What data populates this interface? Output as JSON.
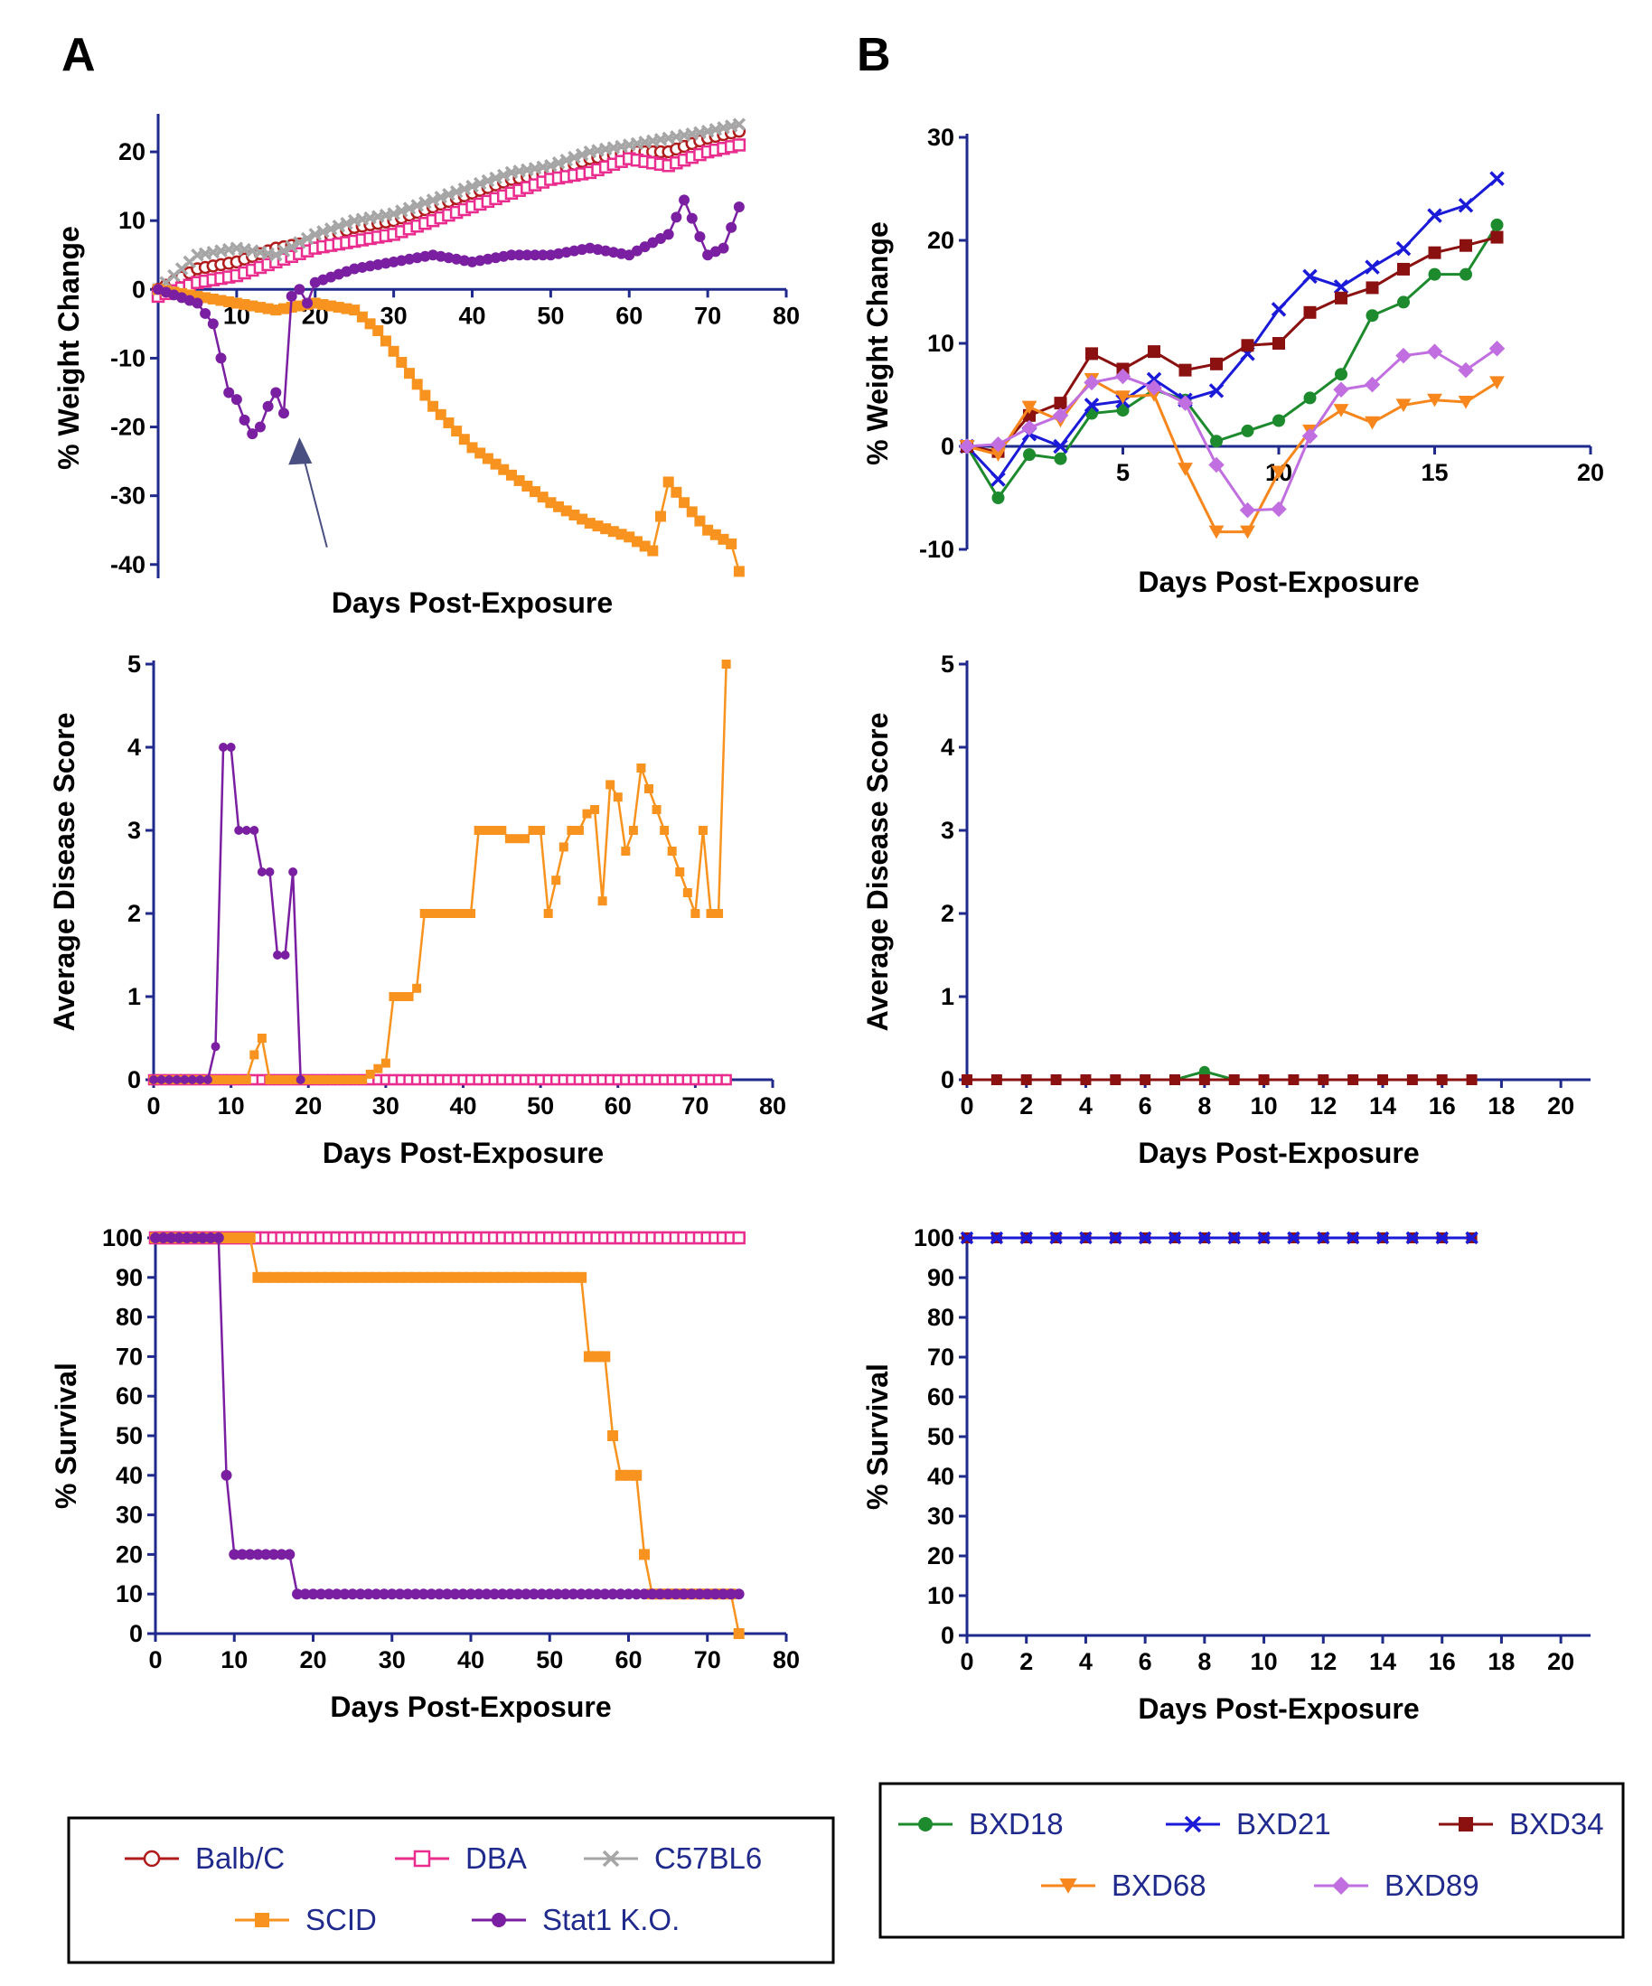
{
  "panels": {
    "A": "A",
    "B": "B"
  },
  "colors": {
    "axis": "#1f2a8c",
    "Balb/C": "#b01c1c",
    "DBA": "#ea2c8e",
    "C57BL6": "#a6a6a6",
    "SCID": "#f7931e",
    "Stat1 K.O.": "#7b1fa2",
    "BXD18": "#1d8a2e",
    "BXD21": "#1a1ad8",
    "BXD34": "#8b1010",
    "BXD68": "#f7861c",
    "BXD89": "#c06ee0",
    "arrow": "#4a4f82"
  },
  "legendA": [
    {
      "label": "Balb/C",
      "marker": "circle-open"
    },
    {
      "label": "DBA",
      "marker": "square-open"
    },
    {
      "label": "C57BL6",
      "marker": "x"
    },
    {
      "label": "SCID",
      "marker": "square"
    },
    {
      "label": "Stat1 K.O.",
      "marker": "circle"
    }
  ],
  "legendB": [
    {
      "label": "BXD18",
      "marker": "circle"
    },
    {
      "label": "BXD21",
      "marker": "x"
    },
    {
      "label": "BXD34",
      "marker": "square"
    },
    {
      "label": "BXD68",
      "marker": "triangle-down"
    },
    {
      "label": "BXD89",
      "marker": "diamond"
    }
  ],
  "chart_data": [
    {
      "id": "A-weight",
      "type": "line",
      "panel": "A",
      "xlabel": "Days Post-Exposure",
      "ylabel": "% Weight Change",
      "xlim": [
        0,
        80
      ],
      "ylim": [
        -42,
        25
      ],
      "xticks": [
        "10",
        "20",
        "30",
        "40",
        "50",
        "60",
        "70",
        "80"
      ],
      "yticks": [
        "-40",
        "-30",
        "-20",
        "-10",
        "0",
        "10",
        "20"
      ],
      "annotation": "arrow pointing at Stat1 K.O. recovery near day 18",
      "series": [
        {
          "name": "Balb/C",
          "x": [
            0,
            5,
            10,
            15,
            20,
            25,
            30,
            35,
            40,
            45,
            50,
            55,
            60,
            65,
            70,
            74
          ],
          "y": [
            0,
            3,
            4,
            6,
            7,
            9,
            10,
            12,
            14,
            16,
            17,
            19,
            20,
            20,
            22,
            23
          ]
        },
        {
          "name": "DBA",
          "x": [
            0,
            5,
            10,
            15,
            20,
            25,
            30,
            35,
            40,
            45,
            50,
            55,
            60,
            65,
            70,
            74
          ],
          "y": [
            -1,
            1,
            2,
            4,
            6,
            7,
            8,
            10,
            12,
            14,
            16,
            17,
            19,
            18,
            20,
            21
          ]
        },
        {
          "name": "C57BL6",
          "x": [
            0,
            5,
            10,
            15,
            20,
            25,
            30,
            35,
            40,
            45,
            50,
            55,
            60,
            65,
            70,
            74
          ],
          "y": [
            0,
            5,
            6,
            5,
            8,
            10,
            11,
            13,
            15,
            17,
            18,
            20,
            21,
            22,
            23,
            24
          ]
        },
        {
          "name": "SCID",
          "x": [
            0,
            5,
            10,
            15,
            20,
            25,
            28,
            30,
            35,
            40,
            45,
            50,
            55,
            60,
            63,
            65,
            67,
            70,
            73,
            74
          ],
          "y": [
            0,
            -1,
            -2,
            -3,
            -2,
            -3,
            -6,
            -9,
            -17,
            -23,
            -27,
            -31,
            -34,
            -36,
            -38,
            -28,
            -31,
            -35,
            -37,
            -41
          ]
        },
        {
          "name": "Stat1 K.O.",
          "x": [
            0,
            5,
            7,
            8,
            9,
            10,
            11,
            12,
            13,
            14,
            15,
            16,
            17,
            18,
            19,
            20,
            25,
            30,
            35,
            40,
            45,
            50,
            55,
            60,
            65,
            67,
            70,
            72,
            74
          ],
          "y": [
            0,
            -2,
            -5,
            -10,
            -15,
            -16,
            -19,
            -21,
            -20,
            -17,
            -15,
            -18,
            -1,
            0,
            -2,
            1,
            3,
            4,
            5,
            4,
            5,
            5,
            6,
            5,
            8,
            13,
            5,
            6,
            12
          ]
        }
      ]
    },
    {
      "id": "A-disease",
      "type": "line",
      "panel": "A",
      "xlabel": "Days Post-Exposure",
      "ylabel": "Average  Disease Score",
      "xlim": [
        0,
        80
      ],
      "ylim": [
        0,
        5
      ],
      "xticks": [
        "0",
        "10",
        "20",
        "30",
        "40",
        "50",
        "60",
        "70",
        "80"
      ],
      "yticks": [
        "0",
        "1",
        "2",
        "3",
        "4",
        "5"
      ],
      "series": [
        {
          "name": "Balb/C",
          "x": [
            0,
            74
          ],
          "y": [
            0,
            0
          ]
        },
        {
          "name": "C57BL6",
          "x": [
            0,
            74
          ],
          "y": [
            0,
            0
          ]
        },
        {
          "name": "DBA",
          "x": [
            0,
            74
          ],
          "y": [
            0,
            0
          ]
        },
        {
          "name": "SCID",
          "x": [
            0,
            12,
            13,
            14,
            15,
            27,
            30,
            31,
            33,
            34,
            35,
            40,
            41,
            42,
            45,
            46,
            48,
            49,
            50,
            51,
            53,
            54,
            55,
            56,
            57,
            58,
            59,
            60,
            61,
            62,
            63,
            64,
            70,
            71,
            72,
            73,
            74
          ],
          "y": [
            0,
            0,
            0.3,
            0.5,
            0,
            0,
            0.2,
            1,
            1,
            1.1,
            2,
            2,
            2,
            3,
            3,
            2.9,
            2.9,
            3,
            3,
            2,
            2.8,
            3,
            3,
            3.2,
            3.25,
            2.15,
            3.55,
            3.4,
            2.75,
            3,
            3.75,
            3.5,
            2,
            3,
            2,
            2,
            5
          ]
        },
        {
          "name": "Stat1 K.O.",
          "x": [
            0,
            7,
            8,
            9,
            10,
            11,
            12,
            13,
            14,
            15,
            16,
            17,
            18,
            19
          ],
          "y": [
            0,
            0,
            0.4,
            4,
            4,
            3,
            3,
            3,
            2.5,
            2.5,
            1.5,
            1.5,
            2.5,
            0
          ]
        }
      ]
    },
    {
      "id": "A-survival",
      "type": "line",
      "panel": "A",
      "xlabel": "Days Post-Exposure",
      "ylabel": "%  Survival",
      "xlim": [
        0,
        80
      ],
      "ylim": [
        0,
        100
      ],
      "xticks": [
        "0",
        "10",
        "20",
        "30",
        "40",
        "50",
        "60",
        "70",
        "80"
      ],
      "yticks": [
        "0",
        "10",
        "20",
        "30",
        "40",
        "50",
        "60",
        "70",
        "80",
        "90",
        "100"
      ],
      "series": [
        {
          "name": "Balb/C",
          "x": [
            0,
            74
          ],
          "y": [
            100,
            100
          ]
        },
        {
          "name": "C57BL6",
          "x": [
            0,
            74
          ],
          "y": [
            100,
            100
          ]
        },
        {
          "name": "DBA",
          "x": [
            0,
            74
          ],
          "y": [
            100,
            100
          ]
        },
        {
          "name": "SCID",
          "x": [
            0,
            12,
            13,
            54,
            55,
            57,
            58,
            59,
            61,
            62,
            63,
            73,
            74
          ],
          "y": [
            100,
            100,
            90,
            90,
            70,
            70,
            50,
            40,
            40,
            20,
            10,
            10,
            0
          ]
        },
        {
          "name": "Stat1 K.O.",
          "x": [
            0,
            8,
            9,
            10,
            17,
            18,
            74
          ],
          "y": [
            100,
            100,
            40,
            20,
            20,
            10,
            10
          ]
        }
      ]
    },
    {
      "id": "B-weight",
      "type": "line",
      "panel": "B",
      "xlabel": "Days Post-Exposure",
      "ylabel": "% Weight Change",
      "xlim": [
        0,
        20
      ],
      "ylim": [
        -10,
        30
      ],
      "xticks": [
        "5",
        "10",
        "15",
        "20"
      ],
      "yticks": [
        "-10",
        "0",
        "10",
        "20",
        "30"
      ],
      "series": [
        {
          "name": "BXD18",
          "x": [
            0,
            1,
            2,
            3,
            4,
            5,
            6,
            7,
            8,
            9,
            10,
            11,
            12,
            13,
            14,
            15,
            16,
            17
          ],
          "y": [
            0,
            -5,
            -0.8,
            -1.2,
            3.2,
            3.5,
            5.5,
            4.5,
            0.5,
            1.5,
            2.5,
            4.7,
            7,
            12.7,
            14,
            16.7,
            16.7,
            21.5
          ]
        },
        {
          "name": "BXD21",
          "x": [
            0,
            1,
            2,
            3,
            4,
            5,
            6,
            7,
            8,
            9,
            10,
            11,
            12,
            13,
            14,
            15,
            16,
            17
          ],
          "y": [
            0,
            -3.2,
            1.2,
            0,
            4,
            4.4,
            6.5,
            4.5,
            5.4,
            9,
            13.3,
            16.5,
            15.5,
            17.4,
            19.2,
            22.4,
            23.4,
            26
          ]
        },
        {
          "name": "BXD34",
          "x": [
            0,
            1,
            2,
            3,
            4,
            5,
            6,
            7,
            8,
            9,
            10,
            11,
            12,
            13,
            14,
            15,
            16,
            17
          ],
          "y": [
            0,
            -0.5,
            3,
            4.2,
            9,
            7.5,
            9.2,
            7.4,
            8,
            9.8,
            10,
            13,
            14.4,
            15.4,
            17.2,
            18.8,
            19.5,
            20.3
          ]
        },
        {
          "name": "BXD68",
          "x": [
            0,
            1,
            2,
            3,
            4,
            5,
            6,
            7,
            8,
            9,
            10,
            11,
            12,
            13,
            14,
            15,
            16,
            17
          ],
          "y": [
            0,
            -0.8,
            3.8,
            2.5,
            6.5,
            4.8,
            5,
            -2.2,
            -8.3,
            -8.3,
            -2.5,
            1.5,
            3.5,
            2.3,
            4,
            4.5,
            4.3,
            6.2
          ]
        },
        {
          "name": "BXD89",
          "x": [
            0,
            1,
            2,
            3,
            4,
            5,
            6,
            7,
            8,
            9,
            10,
            11,
            12,
            13,
            14,
            15,
            16,
            17
          ],
          "y": [
            0,
            0.2,
            1.8,
            3,
            6.2,
            6.8,
            5.7,
            4.2,
            -1.8,
            -6.2,
            -6.1,
            1,
            5.5,
            6,
            8.8,
            9.2,
            7.4,
            9.5
          ]
        }
      ]
    },
    {
      "id": "B-disease",
      "type": "line",
      "panel": "B",
      "xlabel": "Days Post-Exposure",
      "ylabel": "Average  Disease Score",
      "xlim": [
        0,
        21
      ],
      "ylim": [
        0,
        5
      ],
      "xticks": [
        "0",
        "2",
        "4",
        "6",
        "8",
        "10",
        "12",
        "14",
        "16",
        "18",
        "20"
      ],
      "yticks": [
        "0",
        "1",
        "2",
        "3",
        "4",
        "5"
      ],
      "series": [
        {
          "name": "BXD18",
          "x": [
            0,
            1,
            2,
            3,
            4,
            5,
            6,
            7,
            8,
            9,
            10,
            11,
            12,
            13,
            14,
            15,
            16,
            17
          ],
          "y": [
            0,
            0,
            0,
            0,
            0,
            0,
            0,
            0,
            0.1,
            0,
            0,
            0,
            0,
            0,
            0,
            0,
            0,
            0
          ]
        },
        {
          "name": "BXD34",
          "x": [
            0,
            1,
            2,
            3,
            4,
            5,
            6,
            7,
            8,
            9,
            10,
            11,
            12,
            13,
            14,
            15,
            16,
            17
          ],
          "y": [
            0,
            0,
            0,
            0,
            0,
            0,
            0,
            0,
            0,
            0,
            0,
            0,
            0,
            0,
            0,
            0,
            0,
            0
          ]
        }
      ]
    },
    {
      "id": "B-survival",
      "type": "line",
      "panel": "B",
      "xlabel": "Days Post-Exposure",
      "ylabel": "%  Survival",
      "xlim": [
        0,
        21
      ],
      "ylim": [
        0,
        100
      ],
      "xticks": [
        "0",
        "2",
        "4",
        "6",
        "8",
        "10",
        "12",
        "14",
        "16",
        "18",
        "20"
      ],
      "yticks": [
        "0",
        "10",
        "20",
        "30",
        "40",
        "50",
        "60",
        "70",
        "80",
        "90",
        "100"
      ],
      "series": [
        {
          "name": "BXD34",
          "x": [
            0,
            1,
            2,
            3,
            4,
            5,
            6,
            7,
            8,
            9,
            10,
            11,
            12,
            13,
            14,
            15,
            16,
            17
          ],
          "y": [
            100,
            100,
            100,
            100,
            100,
            100,
            100,
            100,
            100,
            100,
            100,
            100,
            100,
            100,
            100,
            100,
            100,
            100
          ]
        },
        {
          "name": "BXD21",
          "x": [
            0,
            1,
            2,
            3,
            4,
            5,
            6,
            7,
            8,
            9,
            10,
            11,
            12,
            13,
            14,
            15,
            16,
            17
          ],
          "y": [
            100,
            100,
            100,
            100,
            100,
            100,
            100,
            100,
            100,
            100,
            100,
            100,
            100,
            100,
            100,
            100,
            100,
            100
          ]
        }
      ]
    }
  ]
}
